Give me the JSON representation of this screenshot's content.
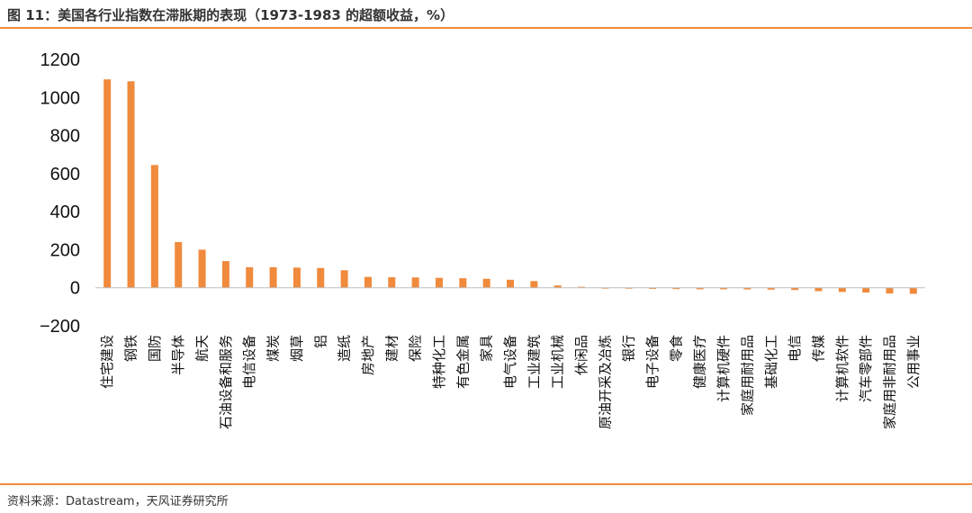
{
  "header": {
    "title": "图 11：美国各行业指数在滞胀期的表现（1973-1983 的超额收益，%）"
  },
  "footer": {
    "source": "资料来源：Datastream，天风证券研究所"
  },
  "colors": {
    "accent": "#F08A3C",
    "bar": "#F08A3C",
    "axis": "#BFBFBF"
  },
  "chart_data": {
    "type": "bar",
    "title": "图 11：美国各行业指数在滞胀期的表现（1973-1983 的超额收益，%）",
    "xlabel": "",
    "ylabel": "",
    "ylim": [
      -200,
      1200
    ],
    "yticks": [
      -200,
      0,
      200,
      400,
      600,
      800,
      1000,
      1200
    ],
    "grid": false,
    "legend": "none",
    "categories": [
      "住宅建设",
      "钢铁",
      "国防",
      "半导体",
      "航天",
      "石油设备和服务",
      "电信设备",
      "煤炭",
      "烟草",
      "铝",
      "造纸",
      "房地产",
      "建材",
      "保险",
      "特种化工",
      "有色金属",
      "家具",
      "电气设备",
      "工业建筑",
      "工业机械",
      "休闲品",
      "原油开采及冶炼",
      "银行",
      "电子设备",
      "零食",
      "健康医疗",
      "计算机硬件",
      "家庭用耐用品",
      "基础化工",
      "电信",
      "传媒",
      "计算机软件",
      "汽车零部件",
      "家庭用非耐用品",
      "公用事业"
    ],
    "values": [
      1095,
      1085,
      645,
      240,
      200,
      140,
      108,
      108,
      106,
      104,
      92,
      57,
      55,
      54,
      52,
      50,
      47,
      42,
      35,
      12,
      5,
      -2,
      -5,
      -6,
      -7,
      -8,
      -8,
      -9,
      -10,
      -12,
      -18,
      -22,
      -25,
      -30,
      -32
    ]
  }
}
